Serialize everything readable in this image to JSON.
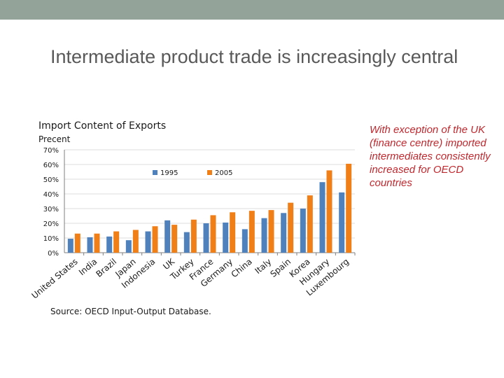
{
  "slide": {
    "title": "Intermediate product trade is increasingly central",
    "note": "With exception of the UK (finance centre) imported intermediates consistently increased for OECD countries",
    "source": "Source: OECD Input-Output Database."
  },
  "colors": {
    "top_bar": "#94a39a",
    "series_1995": "#4f81bd",
    "series_2005": "#f07f18",
    "note_text": "#c0282e"
  },
  "chart_data": {
    "type": "bar",
    "title": "Import Content of Exports",
    "ylabel": "Precent",
    "xlabel": "",
    "ylim": [
      0,
      70
    ],
    "yticks": [
      "0%",
      "10%",
      "20%",
      "30%",
      "40%",
      "50%",
      "60%",
      "70%"
    ],
    "grid": true,
    "legend": "top-center",
    "categories": [
      "United States",
      "India",
      "Brazil",
      "Japan",
      "Indonesia",
      "UK",
      "Turkey",
      "France",
      "Germany",
      "China",
      "Italy",
      "Spain",
      "Korea",
      "Hungary",
      "Luxembourg"
    ],
    "series": [
      {
        "name": "1995",
        "values": [
          9.5,
          10.5,
          11,
          8.5,
          14.5,
          22,
          14,
          20,
          20.5,
          16,
          23.5,
          27,
          30,
          48,
          41
        ]
      },
      {
        "name": "2005",
        "values": [
          13,
          13,
          14.5,
          15.5,
          18,
          19,
          22.5,
          25.5,
          27.5,
          28.5,
          29,
          34,
          39,
          56,
          60.5
        ]
      }
    ]
  }
}
